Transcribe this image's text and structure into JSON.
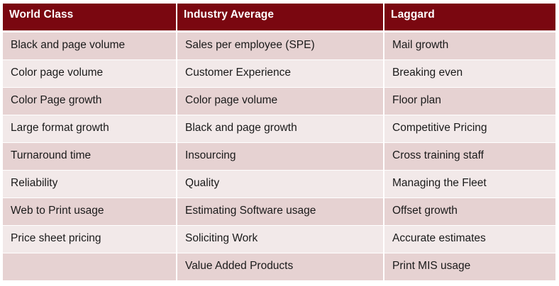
{
  "table": {
    "headers": [
      "World Class",
      "Industry Average",
      "Laggard"
    ],
    "rows": [
      [
        "Black and page volume",
        "Sales per employee (SPE)",
        "Mail growth"
      ],
      [
        "Color page volume",
        "Customer Experience",
        "Breaking even"
      ],
      [
        "Color Page growth",
        "Color page volume",
        "Floor plan"
      ],
      [
        "Large format growth",
        "Black and page growth",
        "Competitive Pricing"
      ],
      [
        "Turnaround time",
        "Insourcing",
        "Cross training staff"
      ],
      [
        "Reliability",
        "Quality",
        "Managing the Fleet"
      ],
      [
        "Web to Print usage",
        "Estimating Software usage",
        "Offset growth"
      ],
      [
        "Price sheet pricing",
        "Soliciting Work",
        "Accurate estimates"
      ],
      [
        "",
        "Value Added Products",
        "Print MIS usage"
      ]
    ]
  },
  "colors": {
    "header_bg": "#7a0710",
    "row_odd": "#e6d2d2",
    "row_even": "#f2e9e9"
  }
}
